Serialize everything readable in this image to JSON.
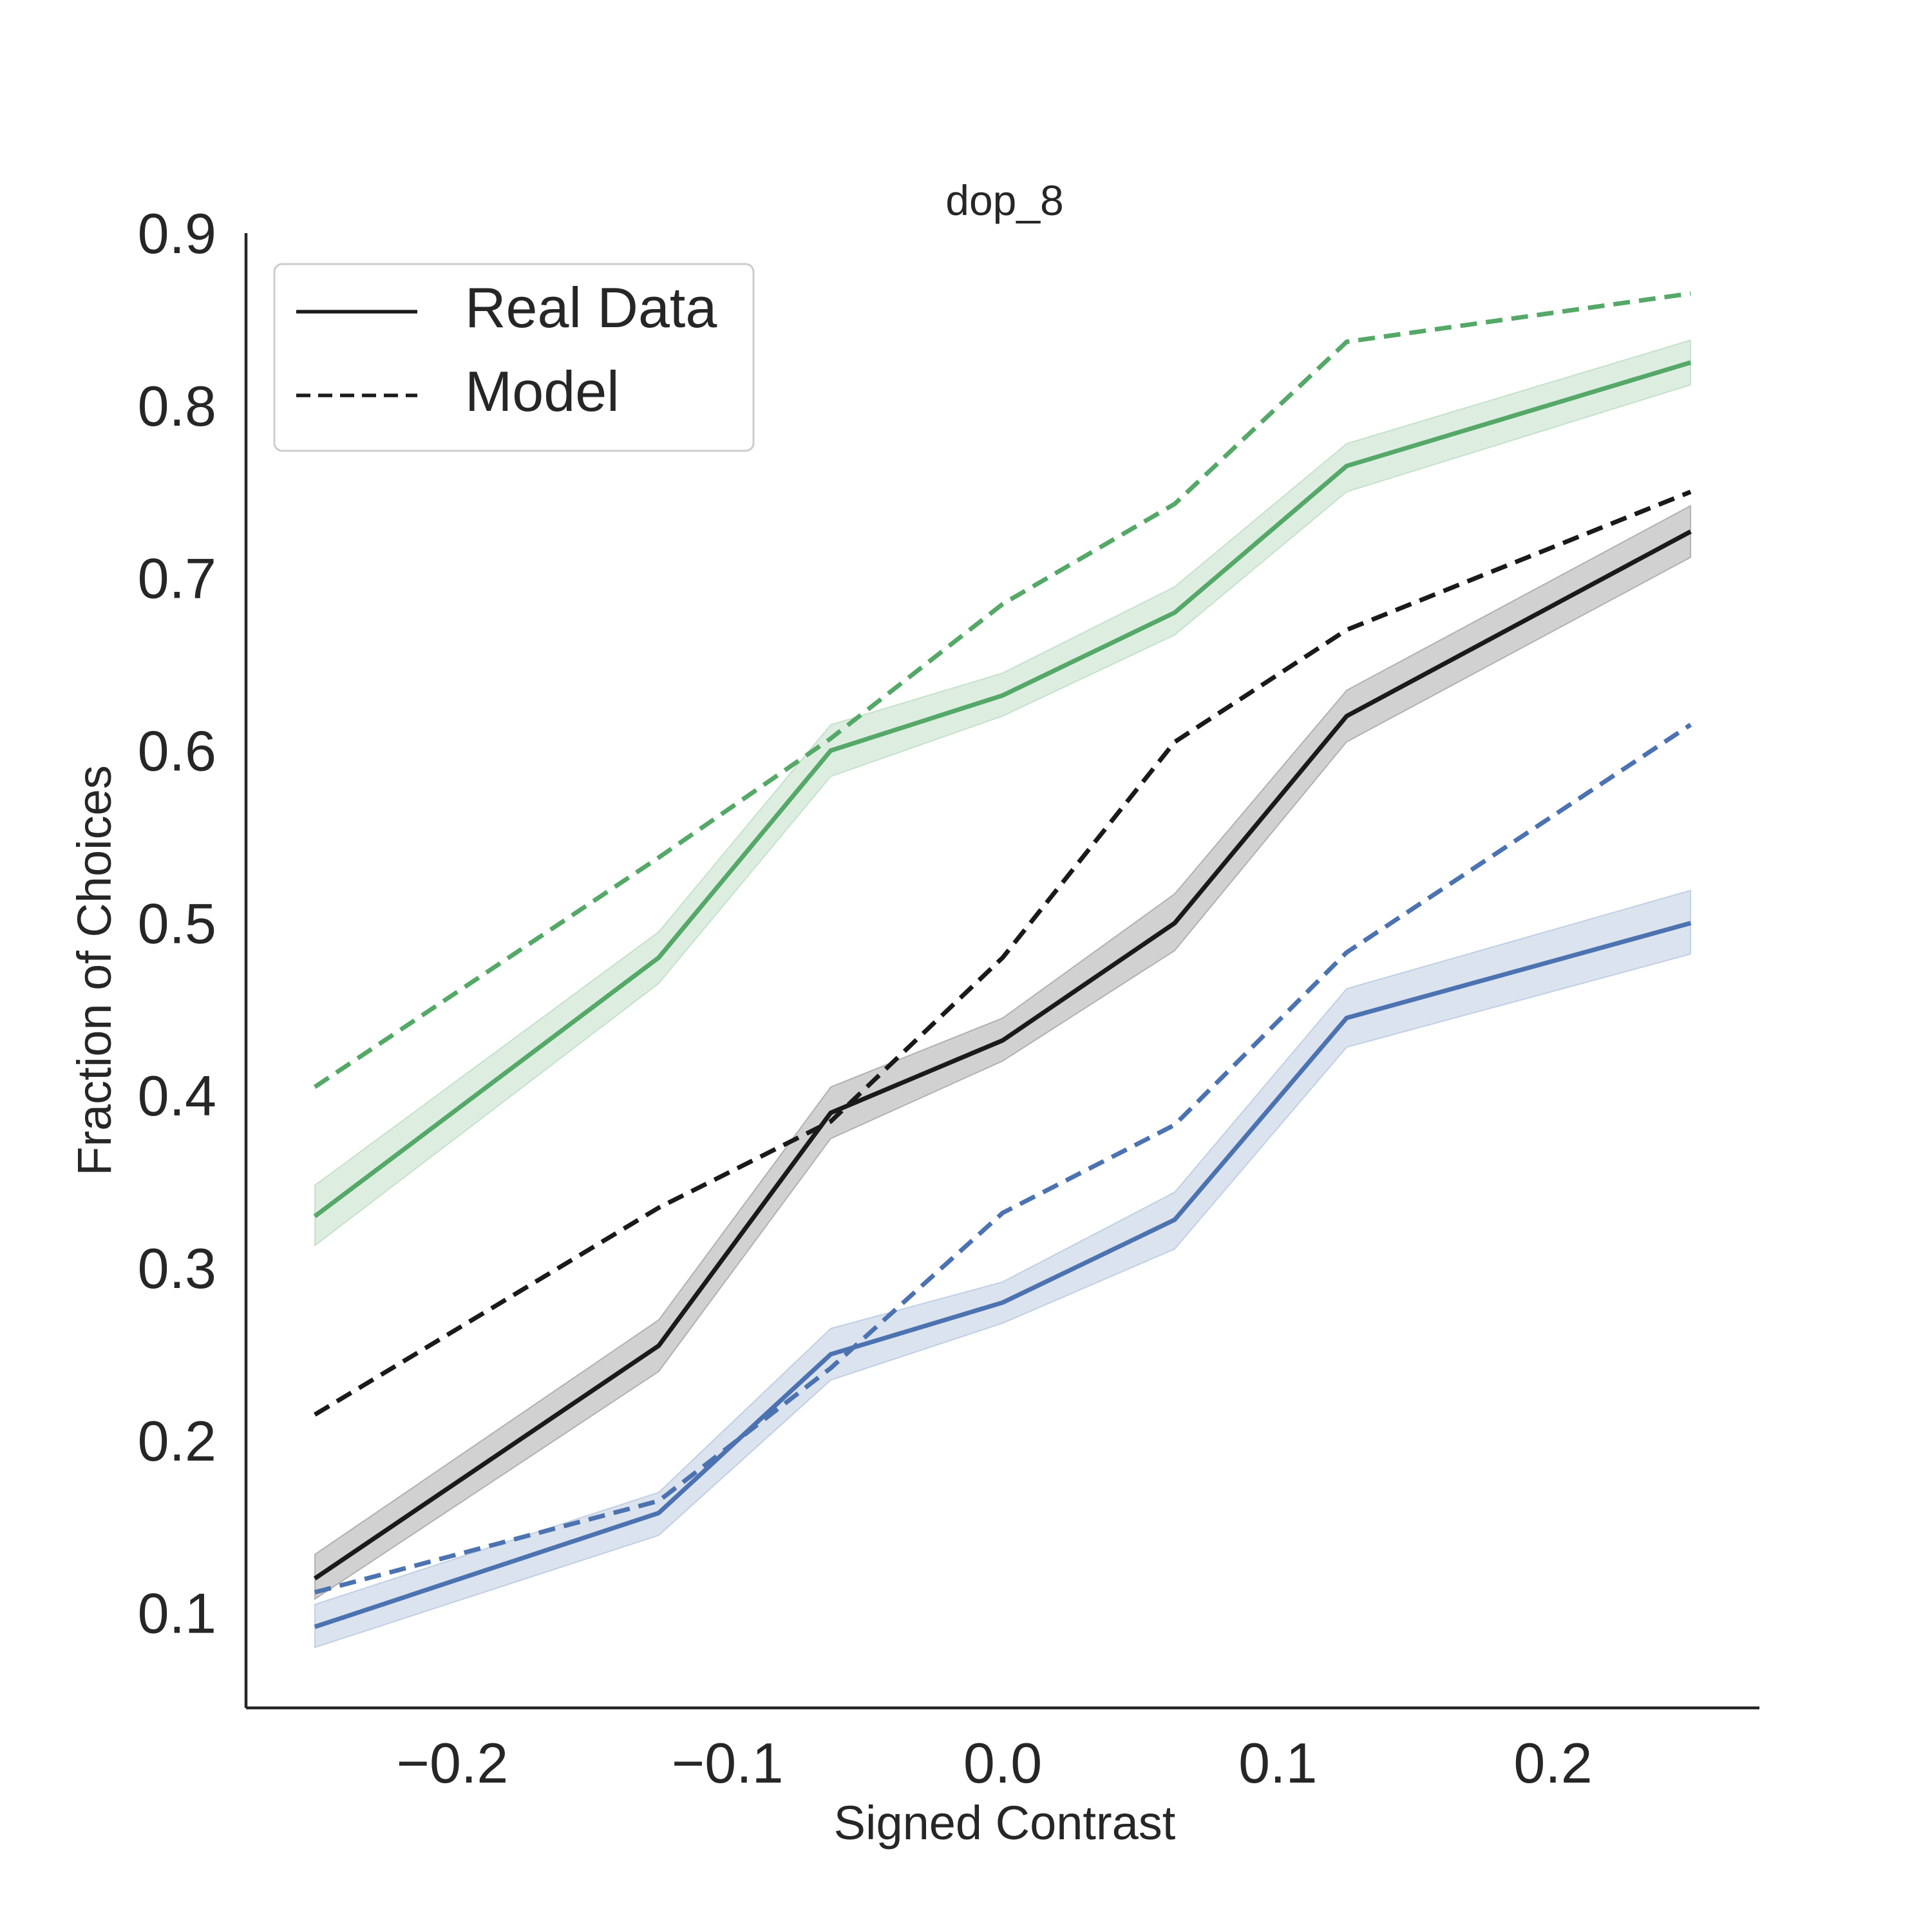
{
  "chart_data": {
    "type": "line",
    "title": "dop_8",
    "xlabel": "Signed Contrast",
    "ylabel": "Fraction of Choices",
    "xlim": [
      -0.275,
      0.275
    ],
    "ylim": [
      0.045,
      0.9
    ],
    "xticks": [
      -0.2,
      -0.1,
      0.0,
      0.1,
      0.2
    ],
    "xtick_labels": [
      "−0.2",
      "−0.1",
      "0.0",
      "0.1",
      "0.2"
    ],
    "yticks": [
      0.1,
      0.2,
      0.3,
      0.4,
      0.5,
      0.6,
      0.7,
      0.8,
      0.9
    ],
    "ytick_labels": [
      "0.1",
      "0.2",
      "0.3",
      "0.4",
      "0.5",
      "0.6",
      "0.7",
      "0.8",
      "0.9"
    ],
    "grid": false,
    "legend": {
      "placement": "top-left",
      "entries": [
        {
          "label": "Real Data",
          "style": "solid"
        },
        {
          "label": "Model",
          "style": "dashed"
        }
      ]
    },
    "x": [
      -0.25,
      -0.125,
      -0.0625,
      0.0,
      0.0625,
      0.125,
      0.25
    ],
    "series": [
      {
        "color": "#55a868",
        "style": "solid",
        "values": [
          0.33,
          0.48,
          0.6,
          0.632,
          0.68,
          0.765,
          0.825
        ],
        "ci_lower": [
          0.313,
          0.465,
          0.585,
          0.62,
          0.667,
          0.75,
          0.812
        ],
        "ci_upper": [
          0.348,
          0.495,
          0.615,
          0.645,
          0.695,
          0.778,
          0.838
        ]
      },
      {
        "color": "#1a1a1a",
        "style": "solid",
        "values": [
          0.12,
          0.255,
          0.39,
          0.432,
          0.5,
          0.62,
          0.727
        ],
        "ci_lower": [
          0.108,
          0.24,
          0.375,
          0.42,
          0.484,
          0.605,
          0.712
        ],
        "ci_upper": [
          0.134,
          0.27,
          0.405,
          0.445,
          0.517,
          0.635,
          0.742
        ]
      },
      {
        "color": "#4c72b0",
        "style": "solid",
        "values": [
          0.092,
          0.158,
          0.25,
          0.28,
          0.328,
          0.445,
          0.5
        ],
        "ci_lower": [
          0.08,
          0.145,
          0.235,
          0.268,
          0.311,
          0.428,
          0.482
        ],
        "ci_upper": [
          0.105,
          0.17,
          0.265,
          0.292,
          0.344,
          0.462,
          0.519
        ]
      },
      {
        "color": "#55a868",
        "style": "dashed",
        "values": [
          0.405,
          0.538,
          0.607,
          0.685,
          0.743,
          0.837,
          0.865
        ]
      },
      {
        "color": "#1a1a1a",
        "style": "dashed",
        "values": [
          0.215,
          0.335,
          0.385,
          0.48,
          0.605,
          0.67,
          0.75
        ]
      },
      {
        "color": "#4c72b0",
        "style": "dashed",
        "values": [
          0.112,
          0.165,
          0.242,
          0.332,
          0.383,
          0.483,
          0.615
        ]
      }
    ]
  }
}
